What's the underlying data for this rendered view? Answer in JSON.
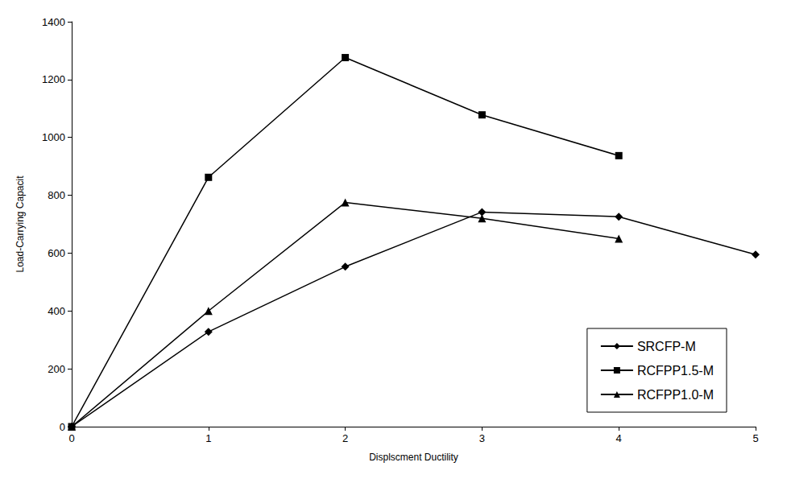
{
  "chart_data": {
    "type": "line",
    "x_label": "Displscment Ductility",
    "y_label": "Load-Carrying Capacit",
    "x": [
      0,
      1,
      2,
      3,
      4,
      5
    ],
    "series": [
      {
        "name": "SRCFP-M",
        "color": "#000000",
        "marker": "diamond",
        "values": [
          0,
          328,
          553,
          742,
          726,
          595
        ]
      },
      {
        "name": "RCFPP1.5-M",
        "color": "#000000",
        "marker": "square",
        "values": [
          0,
          862,
          1276,
          1078,
          937,
          null
        ]
      },
      {
        "name": "RCFPP1.0-M",
        "color": "#000000",
        "marker": "triangle",
        "values": [
          0,
          400,
          775,
          720,
          650,
          null
        ]
      }
    ],
    "xlim": [
      0,
      5
    ],
    "xticks": [
      0,
      1,
      2,
      3,
      4,
      5
    ],
    "ylim": [
      0,
      1400
    ],
    "yticks": [
      0,
      200,
      400,
      600,
      800,
      1000,
      1200,
      1400
    ],
    "grid": false,
    "legend": "lower right"
  }
}
